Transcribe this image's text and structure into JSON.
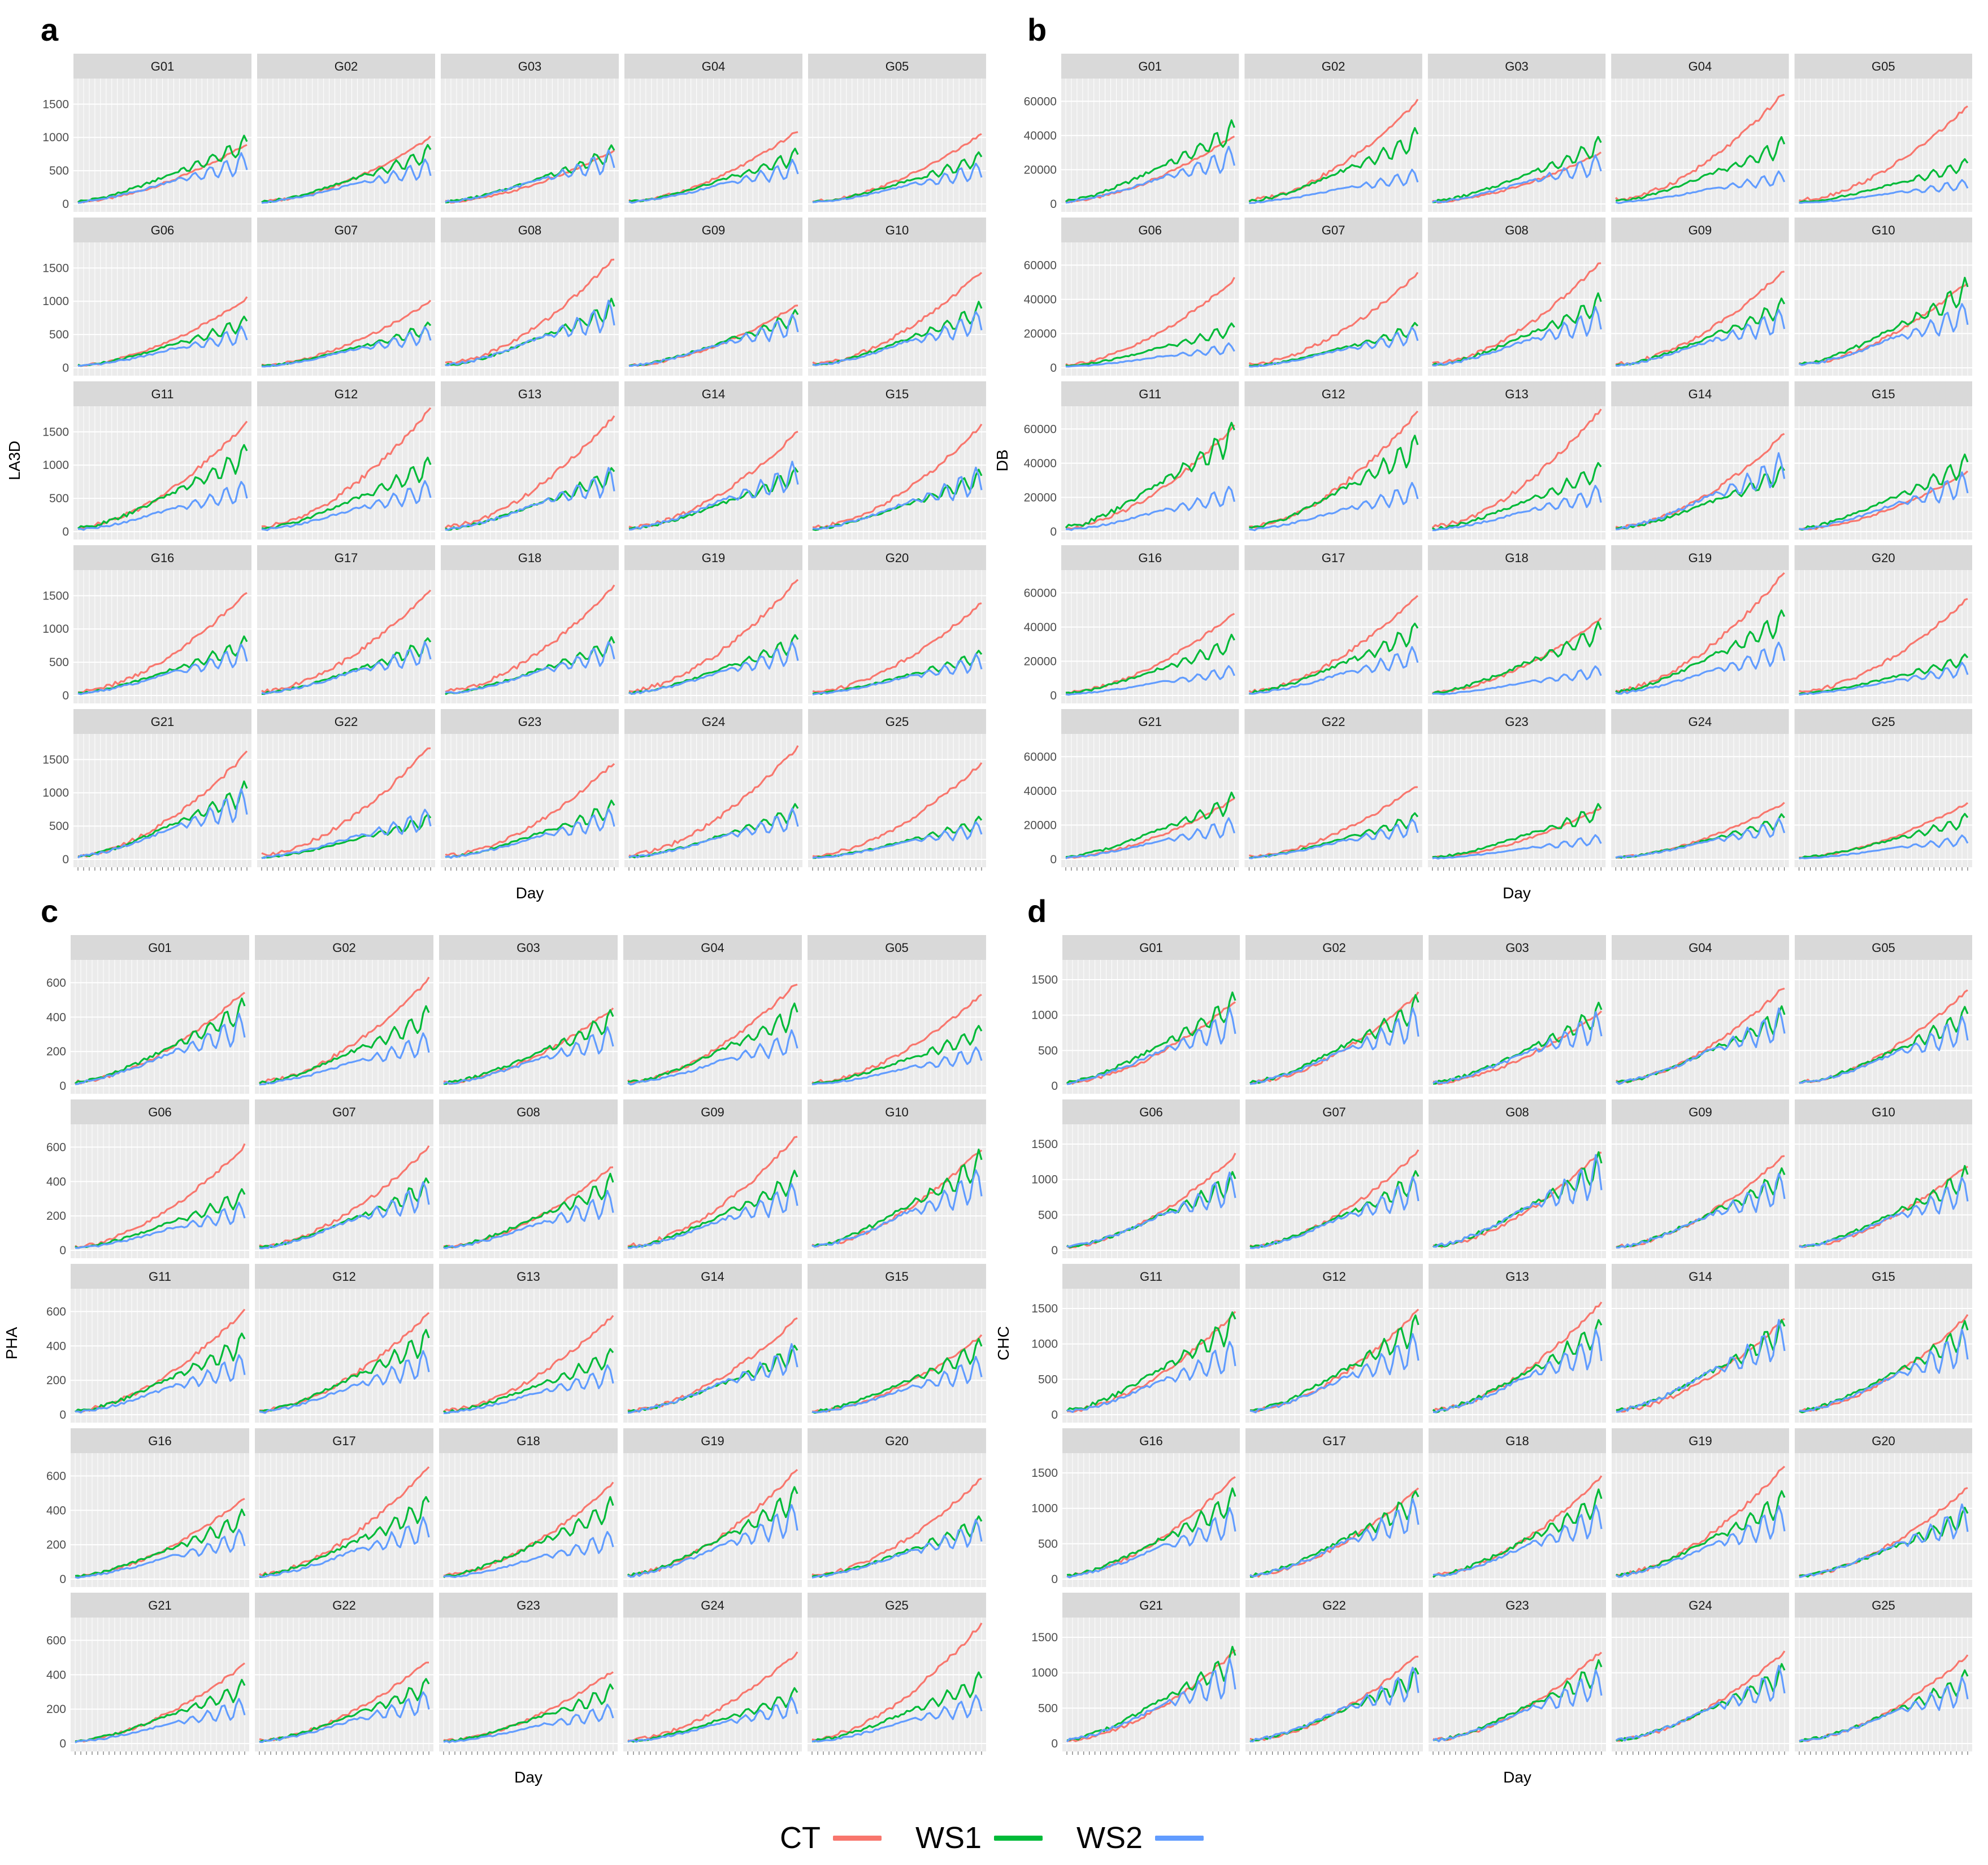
{
  "legend": [
    {
      "label": "CT",
      "color": "#F8766D"
    },
    {
      "label": "WS1",
      "color": "#00BA38"
    },
    {
      "label": "WS2",
      "color": "#619CFF"
    }
  ],
  "chart_data": [
    {
      "type": "line",
      "panel_label": "a",
      "ylabel": "LA3D",
      "xlabel": "Day",
      "ylim": [
        0,
        1800
      ],
      "y_ticks": [
        0,
        500,
        1000,
        1500
      ],
      "facets": [
        "G01",
        "G02",
        "G03",
        "G04",
        "G05",
        "G06",
        "G07",
        "G08",
        "G09",
        "G10",
        "G11",
        "G12",
        "G13",
        "G14",
        "G15",
        "G16",
        "G17",
        "G18",
        "G19",
        "G20",
        "G21",
        "G22",
        "G23",
        "G24",
        "G25"
      ],
      "series": [
        {
          "name": "CT",
          "final": [
            900,
            1000,
            800,
            1100,
            1050,
            1050,
            1000,
            1650,
            950,
            1450,
            1650,
            1850,
            1750,
            1500,
            1600,
            1550,
            1600,
            1650,
            1750,
            1400,
            1600,
            1700,
            1450,
            1700,
            1450
          ]
        },
        {
          "name": "WS1",
          "final": [
            1050,
            900,
            900,
            850,
            800,
            800,
            700,
            1050,
            900,
            1000,
            1350,
            1150,
            1000,
            1000,
            950,
            900,
            900,
            900,
            950,
            700,
            1200,
            700,
            900,
            850,
            650
          ]
        },
        {
          "name": "WS2",
          "final": [
            800,
            700,
            850,
            700,
            650,
            650,
            650,
            1050,
            850,
            900,
            800,
            800,
            1000,
            1100,
            1000,
            800,
            850,
            850,
            850,
            650,
            1100,
            800,
            800,
            800,
            600
          ]
        }
      ]
    },
    {
      "type": "line",
      "panel_label": "b",
      "ylabel": "DB",
      "xlabel": "Day",
      "ylim": [
        0,
        70000
      ],
      "y_ticks": [
        0,
        20000,
        40000,
        60000
      ],
      "facets": [
        "G01",
        "G02",
        "G03",
        "G04",
        "G05",
        "G06",
        "G07",
        "G08",
        "G09",
        "G10",
        "G11",
        "G12",
        "G13",
        "G14",
        "G15",
        "G16",
        "G17",
        "G18",
        "G19",
        "G20",
        "G21",
        "G22",
        "G23",
        "G24",
        "G25"
      ],
      "series": [
        {
          "name": "CT",
          "final": [
            40000,
            60000,
            30000,
            65000,
            57000,
            52000,
            55000,
            62000,
            57000,
            50000,
            62000,
            70000,
            72000,
            57000,
            35000,
            48000,
            59000,
            45000,
            72000,
            57000,
            35000,
            43000,
            30000,
            33000,
            33000
          ]
        },
        {
          "name": "WS1",
          "final": [
            50000,
            45000,
            40000,
            40000,
            27000,
            27000,
            27000,
            44000,
            42000,
            53000,
            66000,
            58000,
            42000,
            40000,
            46000,
            36000,
            44000,
            44000,
            52000,
            25000,
            40000,
            28000,
            33000,
            27000,
            27000
          ]
        },
        {
          "name": "WS2",
          "final": [
            35000,
            21000,
            30000,
            20000,
            15000,
            15000,
            25000,
            37000,
            36000,
            40000,
            28000,
            30000,
            28000,
            48000,
            36000,
            18000,
            30000,
            18000,
            33000,
            20000,
            25000,
            25000,
            15000,
            25000,
            15000
          ]
        }
      ]
    },
    {
      "type": "line",
      "panel_label": "c",
      "ylabel": "PHA",
      "xlabel": "Day",
      "ylim": [
        0,
        700
      ],
      "y_ticks": [
        0,
        200,
        400,
        600
      ],
      "facets": [
        "G01",
        "G02",
        "G03",
        "G04",
        "G05",
        "G06",
        "G07",
        "G08",
        "G09",
        "G10",
        "G11",
        "G12",
        "G13",
        "G14",
        "G15",
        "G16",
        "G17",
        "G18",
        "G19",
        "G20",
        "G21",
        "G22",
        "G23",
        "G24",
        "G25"
      ],
      "series": [
        {
          "name": "CT",
          "final": [
            550,
            620,
            450,
            600,
            530,
            610,
            600,
            490,
            670,
            590,
            610,
            590,
            580,
            560,
            460,
            470,
            660,
            560,
            640,
            590,
            460,
            480,
            420,
            530,
            700
          ]
        },
        {
          "name": "WS1",
          "final": [
            520,
            470,
            450,
            490,
            360,
            370,
            430,
            450,
            480,
            590,
            490,
            510,
            400,
            420,
            450,
            410,
            500,
            490,
            560,
            380,
            380,
            390,
            350,
            330,
            420
          ]
        },
        {
          "name": "WS2",
          "final": [
            440,
            320,
            360,
            340,
            240,
            290,
            420,
            360,
            410,
            500,
            370,
            390,
            300,
            430,
            350,
            300,
            380,
            290,
            460,
            360,
            270,
            320,
            240,
            280,
            300
          ]
        }
      ]
    },
    {
      "type": "line",
      "panel_label": "d",
      "ylabel": "CHC",
      "xlabel": "Day",
      "ylim": [
        0,
        1700
      ],
      "y_ticks": [
        0,
        500,
        1000,
        1500
      ],
      "facets": [
        "G01",
        "G02",
        "G03",
        "G04",
        "G05",
        "G06",
        "G07",
        "G08",
        "G09",
        "G10",
        "G11",
        "G12",
        "G13",
        "G14",
        "G15",
        "G16",
        "G17",
        "G18",
        "G19",
        "G20",
        "G21",
        "G22",
        "G23",
        "G24",
        "G25"
      ],
      "series": [
        {
          "name": "CT",
          "final": [
            1200,
            1300,
            1050,
            1400,
            1350,
            1350,
            1400,
            1400,
            1350,
            1200,
            1450,
            1480,
            1600,
            1350,
            1400,
            1450,
            1300,
            1450,
            1600,
            1300,
            1300,
            1250,
            1300,
            1300,
            1250
          ]
        },
        {
          "name": "WS1",
          "final": [
            1350,
            1300,
            1200,
            1150,
            1150,
            1150,
            1150,
            1400,
            1200,
            1200,
            1500,
            1450,
            1400,
            1400,
            1350,
            1300,
            1300,
            1300,
            1300,
            1050,
            1400,
            1100,
            1200,
            1150,
            1050
          ]
        },
        {
          "name": "WS2",
          "final": [
            1150,
            1150,
            1100,
            1150,
            1050,
            1150,
            1100,
            1400,
            1150,
            1100,
            1100,
            1200,
            1250,
            1400,
            1250,
            1050,
            1200,
            1100,
            1100,
            1100,
            1250,
            1150,
            1100,
            1150,
            1000
          ]
        }
      ]
    }
  ]
}
